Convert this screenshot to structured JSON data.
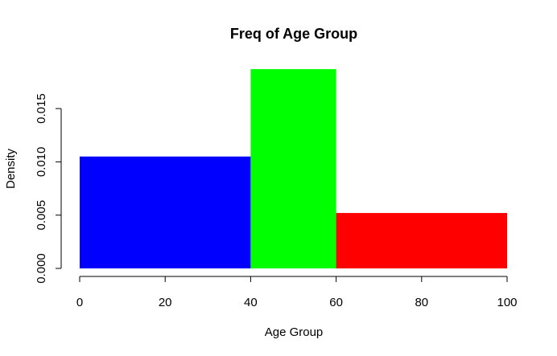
{
  "chart_data": {
    "type": "bar",
    "title": "Freq of Age Group",
    "xlabel": "Age Group",
    "ylabel": "Density",
    "bins": [
      {
        "start": 0,
        "end": 40,
        "density": 0.0105,
        "color": "#0000FF"
      },
      {
        "start": 40,
        "end": 60,
        "density": 0.0187,
        "color": "#00FF00"
      },
      {
        "start": 60,
        "end": 100,
        "density": 0.0052,
        "color": "#FF0000"
      }
    ],
    "xlim": [
      0,
      100
    ],
    "ylim": [
      0,
      0.019
    ],
    "xticks": [
      0,
      20,
      40,
      60,
      80,
      100
    ],
    "yticks": [
      0,
      0.005,
      0.01,
      0.015
    ],
    "ytick_labels": [
      "0.000",
      "0.005",
      "0.010",
      "0.015"
    ],
    "grid": false,
    "legend": "none"
  }
}
